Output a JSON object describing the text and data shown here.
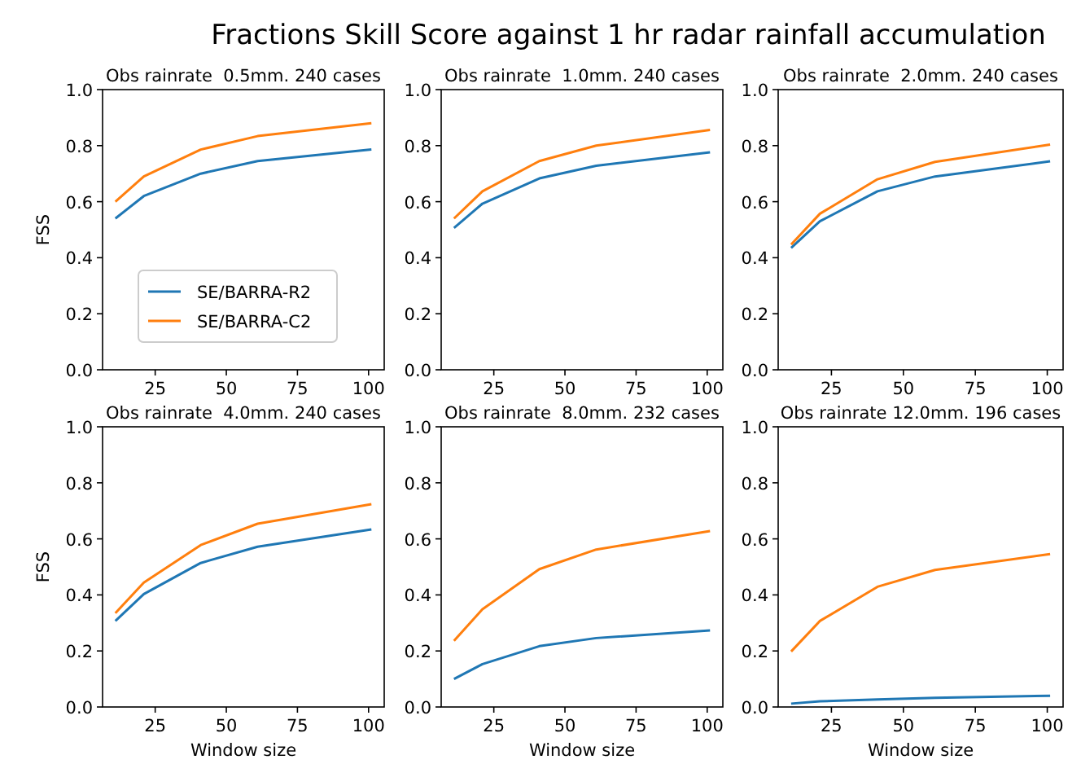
{
  "chart_data": [
    {
      "type": "line",
      "title": "Obs rainrate  0.5mm. 240 cases",
      "ylabel": "FSS",
      "annotations": [
        "Fractions Skill Score against 1 hr radar rainfall accumulation"
      ],
      "x": [
        11,
        21,
        41,
        61,
        101
      ],
      "xlim": [
        6.5,
        105.5
      ],
      "ylim": [
        0,
        1
      ],
      "xticks": [
        25,
        50,
        75,
        100
      ],
      "yticks": [
        {
          "value": 0,
          "label": "0.0"
        },
        {
          "value": 0.2,
          "label": "0.2"
        },
        {
          "value": 0.4,
          "label": "0.4"
        },
        {
          "value": 0.6,
          "label": "0.6"
        },
        {
          "value": 0.8,
          "label": "0.8"
        },
        {
          "value": 1,
          "label": "1.0"
        }
      ],
      "legend": "lower left",
      "series": [
        {
          "name": "SE/BARRA-R2",
          "color": "#1f77b4",
          "values": [
            0.54,
            0.62,
            0.7,
            0.745,
            0.786
          ]
        },
        {
          "name": "SE/BARRA-C2",
          "color": "#ff7f0e",
          "values": [
            0.6,
            0.69,
            0.786,
            0.834,
            0.88
          ]
        }
      ]
    },
    {
      "type": "line",
      "title": "Obs rainrate  1.0mm. 240 cases",
      "x": [
        11,
        21,
        41,
        61,
        101
      ],
      "xlim": [
        6.5,
        105.5
      ],
      "ylim": [
        0,
        1
      ],
      "xticks": [
        25,
        50,
        75,
        100
      ],
      "yticks": [
        {
          "value": 0,
          "label": "0.0"
        },
        {
          "value": 0.2,
          "label": "0.2"
        },
        {
          "value": 0.4,
          "label": "0.4"
        },
        {
          "value": 0.6,
          "label": "0.6"
        },
        {
          "value": 0.8,
          "label": "0.8"
        },
        {
          "value": 1,
          "label": "1.0"
        }
      ],
      "series": [
        {
          "color": "#1f77b4",
          "values": [
            0.506,
            0.593,
            0.683,
            0.728,
            0.776
          ]
        },
        {
          "color": "#ff7f0e",
          "values": [
            0.54,
            0.637,
            0.745,
            0.8,
            0.856
          ]
        }
      ]
    },
    {
      "type": "line",
      "title": "Obs rainrate  2.0mm. 240 cases",
      "x": [
        11,
        21,
        41,
        61,
        101
      ],
      "xlim": [
        6.5,
        105.5
      ],
      "ylim": [
        0,
        1
      ],
      "xticks": [
        25,
        50,
        75,
        100
      ],
      "yticks": [
        {
          "value": 0,
          "label": "0.0"
        },
        {
          "value": 0.2,
          "label": "0.2"
        },
        {
          "value": 0.4,
          "label": "0.4"
        },
        {
          "value": 0.6,
          "label": "0.6"
        },
        {
          "value": 0.8,
          "label": "0.8"
        },
        {
          "value": 1,
          "label": "1.0"
        }
      ],
      "series": [
        {
          "color": "#1f77b4",
          "values": [
            0.435,
            0.53,
            0.637,
            0.69,
            0.744
          ]
        },
        {
          "color": "#ff7f0e",
          "values": [
            0.447,
            0.557,
            0.68,
            0.742,
            0.804
          ]
        }
      ]
    },
    {
      "type": "line",
      "title": "Obs rainrate  4.0mm. 240 cases",
      "xlabel": "Window size",
      "ylabel": "FSS",
      "x": [
        11,
        21,
        41,
        61,
        101
      ],
      "xlim": [
        6.5,
        105.5
      ],
      "ylim": [
        0,
        1
      ],
      "xticks": [
        25,
        50,
        75,
        100
      ],
      "yticks": [
        {
          "value": 0,
          "label": "0.0"
        },
        {
          "value": 0.2,
          "label": "0.2"
        },
        {
          "value": 0.4,
          "label": "0.4"
        },
        {
          "value": 0.6,
          "label": "0.6"
        },
        {
          "value": 0.8,
          "label": "0.8"
        },
        {
          "value": 1,
          "label": "1.0"
        }
      ],
      "series": [
        {
          "color": "#1f77b4",
          "values": [
            0.307,
            0.403,
            0.514,
            0.572,
            0.634
          ]
        },
        {
          "color": "#ff7f0e",
          "values": [
            0.335,
            0.444,
            0.578,
            0.654,
            0.724
          ]
        }
      ]
    },
    {
      "type": "line",
      "title": "Obs rainrate  8.0mm. 232 cases",
      "xlabel": "Window size",
      "x": [
        11,
        21,
        41,
        61,
        101
      ],
      "xlim": [
        6.5,
        105.5
      ],
      "ylim": [
        0,
        1
      ],
      "xticks": [
        25,
        50,
        75,
        100
      ],
      "yticks": [
        {
          "value": 0,
          "label": "0.0"
        },
        {
          "value": 0.2,
          "label": "0.2"
        },
        {
          "value": 0.4,
          "label": "0.4"
        },
        {
          "value": 0.6,
          "label": "0.6"
        },
        {
          "value": 0.8,
          "label": "0.8"
        },
        {
          "value": 1,
          "label": "1.0"
        }
      ],
      "series": [
        {
          "color": "#1f77b4",
          "values": [
            0.1,
            0.153,
            0.217,
            0.246,
            0.273
          ]
        },
        {
          "color": "#ff7f0e",
          "values": [
            0.236,
            0.349,
            0.492,
            0.562,
            0.628
          ]
        }
      ]
    },
    {
      "type": "line",
      "title": "Obs rainrate 12.0mm. 196 cases",
      "xlabel": "Window size",
      "x": [
        11,
        21,
        41,
        61,
        101
      ],
      "xlim": [
        6.5,
        105.5
      ],
      "ylim": [
        0,
        1
      ],
      "xticks": [
        25,
        50,
        75,
        100
      ],
      "yticks": [
        {
          "value": 0,
          "label": "0.0"
        },
        {
          "value": 0.2,
          "label": "0.2"
        },
        {
          "value": 0.4,
          "label": "0.4"
        },
        {
          "value": 0.6,
          "label": "0.6"
        },
        {
          "value": 0.8,
          "label": "0.8"
        },
        {
          "value": 1,
          "label": "1.0"
        }
      ],
      "series": [
        {
          "color": "#1f77b4",
          "values": [
            0.012,
            0.02,
            0.027,
            0.033,
            0.04
          ]
        },
        {
          "color": "#ff7f0e",
          "values": [
            0.198,
            0.307,
            0.429,
            0.489,
            0.546
          ]
        }
      ]
    }
  ]
}
